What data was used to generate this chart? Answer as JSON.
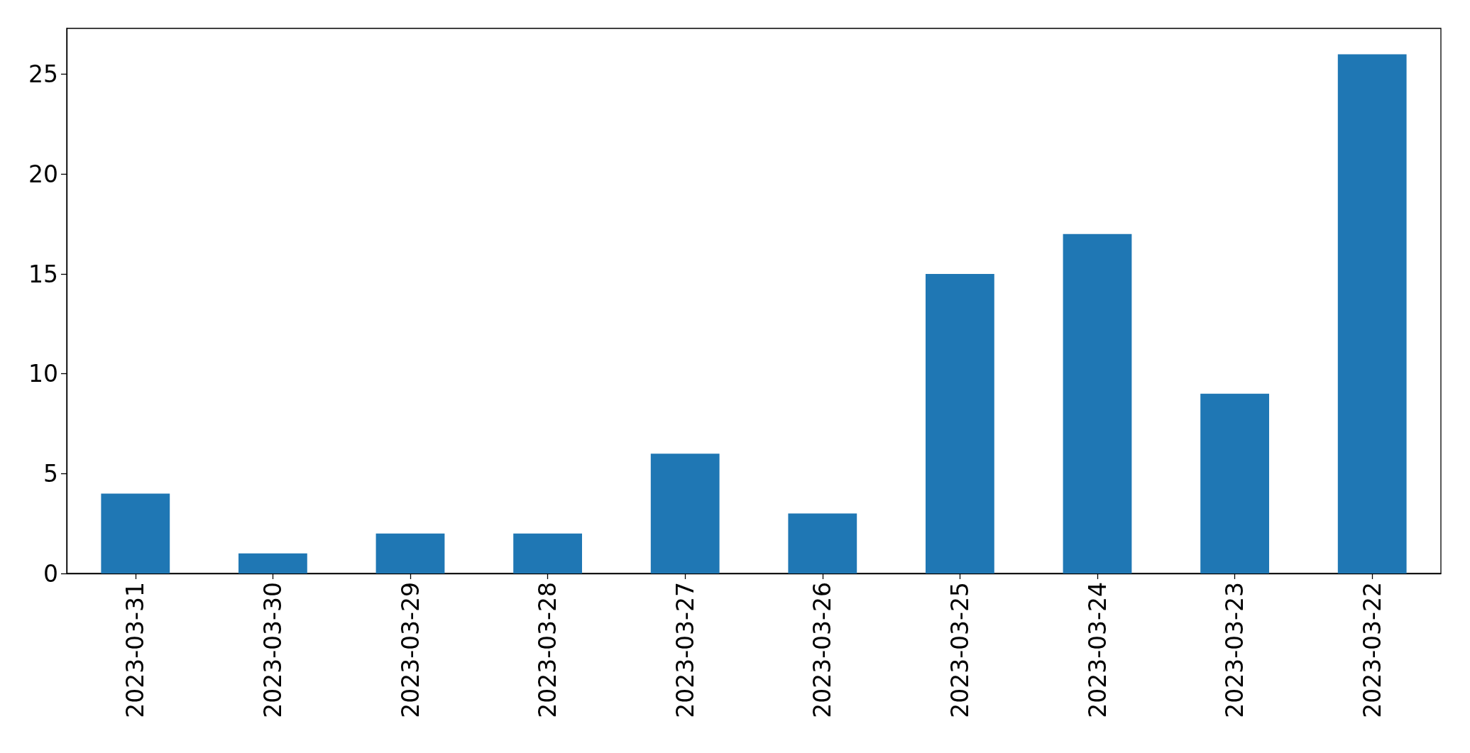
{
  "chart_data": {
    "type": "bar",
    "categories": [
      "2023-03-31",
      "2023-03-30",
      "2023-03-29",
      "2023-03-28",
      "2023-03-27",
      "2023-03-26",
      "2023-03-25",
      "2023-03-24",
      "2023-03-23",
      "2023-03-22"
    ],
    "values": [
      4,
      1,
      2,
      2,
      6,
      3,
      15,
      17,
      9,
      26
    ],
    "color": "#1f77b4",
    "ylim": [
      0,
      27.3
    ],
    "yticks": [
      0,
      5,
      10,
      15,
      20,
      25
    ],
    "grid": false
  }
}
